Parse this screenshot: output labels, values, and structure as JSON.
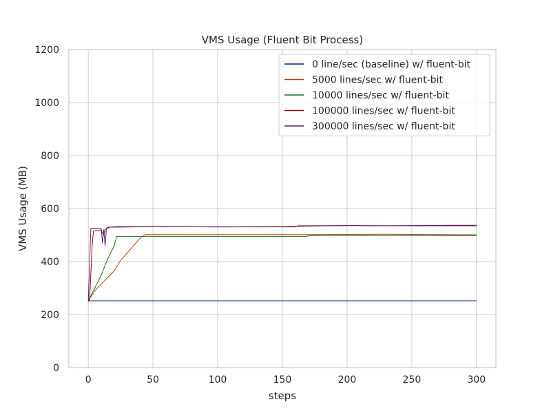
{
  "chart_data": {
    "type": "line",
    "title": "VMS Usage (Fluent Bit Process)",
    "xlabel": "steps",
    "ylabel": "VMS Usage (MB)",
    "xlim": [
      -15,
      315
    ],
    "ylim": [
      0,
      1200
    ],
    "x_ticks": [
      0,
      50,
      100,
      150,
      200,
      250,
      300
    ],
    "y_ticks": [
      0,
      200,
      400,
      600,
      800,
      1000,
      1200
    ],
    "x_tick_labels": [
      "0",
      "50",
      "100",
      "150",
      "200",
      "250",
      "300"
    ],
    "y_tick_labels": [
      "0",
      "200",
      "400",
      "600",
      "800",
      "1000",
      "1200"
    ],
    "grid": true,
    "legend_position": "top-right",
    "series": [
      {
        "name": "0 line/sec (baseline) w/ fluent-bit",
        "color": "#001c7f",
        "points": [
          [
            0,
            252
          ],
          [
            300,
            252
          ]
        ]
      },
      {
        "name": "5000 lines/sec w/ fluent-bit",
        "color": "#b1400d",
        "points": [
          [
            0,
            252
          ],
          [
            5,
            290
          ],
          [
            10,
            315
          ],
          [
            15,
            340
          ],
          [
            20,
            365
          ],
          [
            25,
            405
          ],
          [
            30,
            432
          ],
          [
            35,
            460
          ],
          [
            40,
            488
          ],
          [
            44,
            502
          ],
          [
            100,
            502
          ],
          [
            170,
            502
          ],
          [
            230,
            503
          ],
          [
            300,
            501
          ]
        ]
      },
      {
        "name": "10000 lines/sec w/ fluent-bit",
        "color": "#12711c",
        "points": [
          [
            0,
            252
          ],
          [
            5,
            300
          ],
          [
            10,
            350
          ],
          [
            15,
            410
          ],
          [
            20,
            460
          ],
          [
            22,
            495
          ],
          [
            100,
            495
          ],
          [
            168,
            495
          ],
          [
            172,
            498
          ],
          [
            300,
            498
          ]
        ]
      },
      {
        "name": "100000 lines/sec w/ fluent-bit",
        "color": "#8c0800",
        "points": [
          [
            0,
            250
          ],
          [
            1,
            255
          ],
          [
            3,
            460
          ],
          [
            4,
            515
          ],
          [
            10,
            518
          ],
          [
            12,
            500
          ],
          [
            13,
            520
          ],
          [
            15,
            530
          ],
          [
            20,
            530
          ],
          [
            50,
            532
          ],
          [
            100,
            531
          ],
          [
            160,
            531
          ],
          [
            162,
            535
          ],
          [
            200,
            536
          ],
          [
            250,
            535
          ],
          [
            300,
            535
          ]
        ]
      },
      {
        "name": "300000 lines/sec w/ fluent-bit",
        "color": "#591e71",
        "points": [
          [
            0,
            250
          ],
          [
            2,
            525
          ],
          [
            5,
            526
          ],
          [
            10,
            525
          ],
          [
            11,
            470
          ],
          [
            12,
            520
          ],
          [
            13,
            460
          ],
          [
            14,
            525
          ],
          [
            17,
            530
          ],
          [
            22,
            532
          ],
          [
            50,
            532
          ],
          [
            100,
            531
          ],
          [
            150,
            532
          ],
          [
            175,
            534
          ],
          [
            200,
            536
          ],
          [
            220,
            535
          ],
          [
            250,
            536
          ],
          [
            280,
            537
          ],
          [
            300,
            537
          ]
        ]
      }
    ]
  }
}
